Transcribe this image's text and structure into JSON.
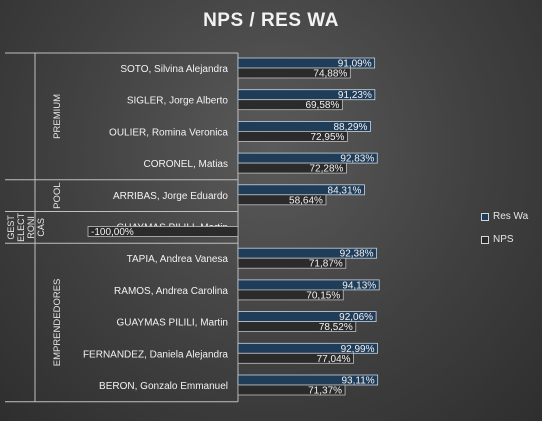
{
  "chart_data": {
    "type": "bar",
    "orientation": "horizontal",
    "title": "NPS / RES WA",
    "groups": [
      {
        "label": "PREMIUM",
        "categories": [
          "SOTO, Silvina Alejandra",
          "SIGLER, Jorge Alberto",
          "OULIER, Romina Veronica",
          "CORONEL, Matias"
        ]
      },
      {
        "label": "POOL",
        "categories": [
          "ARRIBAS, Jorge Eduardo"
        ]
      },
      {
        "label": "GEST ELECT RONI CAS",
        "categories": [
          "GUAYMAS PILILI, Martin"
        ]
      },
      {
        "label": "EMPRENDEDORES",
        "categories": [
          "TAPIA, Andrea Vanesa",
          "RAMOS, Andrea Carolina",
          "GUAYMAS PILILI, Martin",
          "FERNANDEZ, Daniela Alejandra",
          "BERON, Gonzalo Emmanuel"
        ]
      }
    ],
    "categories": [
      "SOTO, Silvina Alejandra",
      "SIGLER, Jorge Alberto",
      "OULIER, Romina Veronica",
      "CORONEL, Matias",
      "ARRIBAS, Jorge Eduardo",
      "GUAYMAS PILILI, Martin",
      "TAPIA, Andrea Vanesa",
      "RAMOS, Andrea Carolina",
      "GUAYMAS PILILI, Martin",
      "FERNANDEZ, Daniela Alejandra",
      "BERON, Gonzalo Emmanuel"
    ],
    "series": [
      {
        "name": "Res Wa",
        "color": "#1f3c58",
        "values": [
          91.09,
          91.23,
          88.29,
          92.83,
          84.31,
          null,
          92.38,
          94.13,
          92.06,
          92.99,
          93.11
        ],
        "labels": [
          "91,09%",
          "91,23%",
          "88,29%",
          "92,83%",
          "84,31%",
          "",
          "92,38%",
          "94,13%",
          "92,06%",
          "92,99%",
          "93,11%"
        ]
      },
      {
        "name": "NPS",
        "color": "#2b2b2b",
        "values": [
          74.88,
          69.58,
          72.95,
          72.28,
          58.64,
          -100,
          71.87,
          70.15,
          78.52,
          77.04,
          71.37
        ],
        "labels": [
          "74,88%",
          "69,58%",
          "72,95%",
          "72,28%",
          "58,64%",
          "-100,00%",
          "71,87%",
          "70,15%",
          "78,52%",
          "77,04%",
          "71,37%"
        ]
      }
    ],
    "xlim": [
      -100,
      100
    ],
    "grid": false,
    "legend_position": "right"
  }
}
